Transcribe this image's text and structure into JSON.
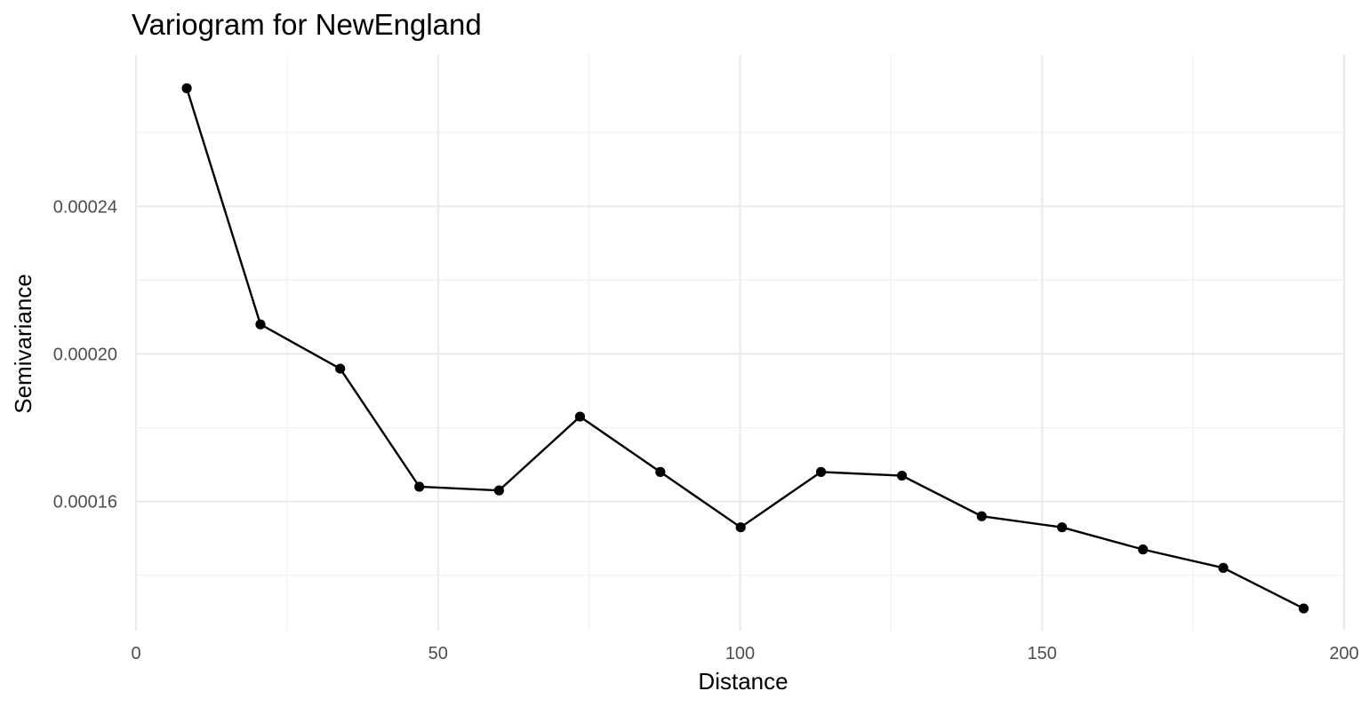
{
  "chart_data": {
    "type": "line",
    "title": "Variogram for NewEngland",
    "xlabel": "Distance",
    "ylabel": "Semivariance",
    "xlim": [
      0,
      200
    ],
    "ylim": [
      0.000125,
      0.000281
    ],
    "x_ticks": [
      0,
      50,
      100,
      150,
      200
    ],
    "x_tick_labels": [
      "0",
      "50",
      "100",
      "150",
      "200"
    ],
    "x_minor_ticks": [
      25,
      75,
      125,
      175
    ],
    "y_ticks": [
      0.00016,
      0.0002,
      0.00024
    ],
    "y_tick_labels": [
      "0.00016",
      "0.00020",
      "0.00024"
    ],
    "y_minor_ticks": [
      0.00014,
      0.00018,
      0.00022,
      0.00026
    ],
    "grid": true,
    "series": [
      {
        "x": [
          8.4,
          20.6,
          33.8,
          46.9,
          60.1,
          73.5,
          86.8,
          100.1,
          113.4,
          126.8,
          140.0,
          153.3,
          166.7,
          180.0,
          193.3
        ],
        "y": [
          0.000272,
          0.000208,
          0.000196,
          0.000164,
          0.000163,
          0.000183,
          0.000168,
          0.000153,
          0.000168,
          0.000167,
          0.000156,
          0.000153,
          0.000147,
          0.000142,
          0.000131
        ]
      }
    ],
    "colors": {
      "line": "#000000",
      "points": "#000000",
      "grid": "#ebebeb"
    }
  }
}
